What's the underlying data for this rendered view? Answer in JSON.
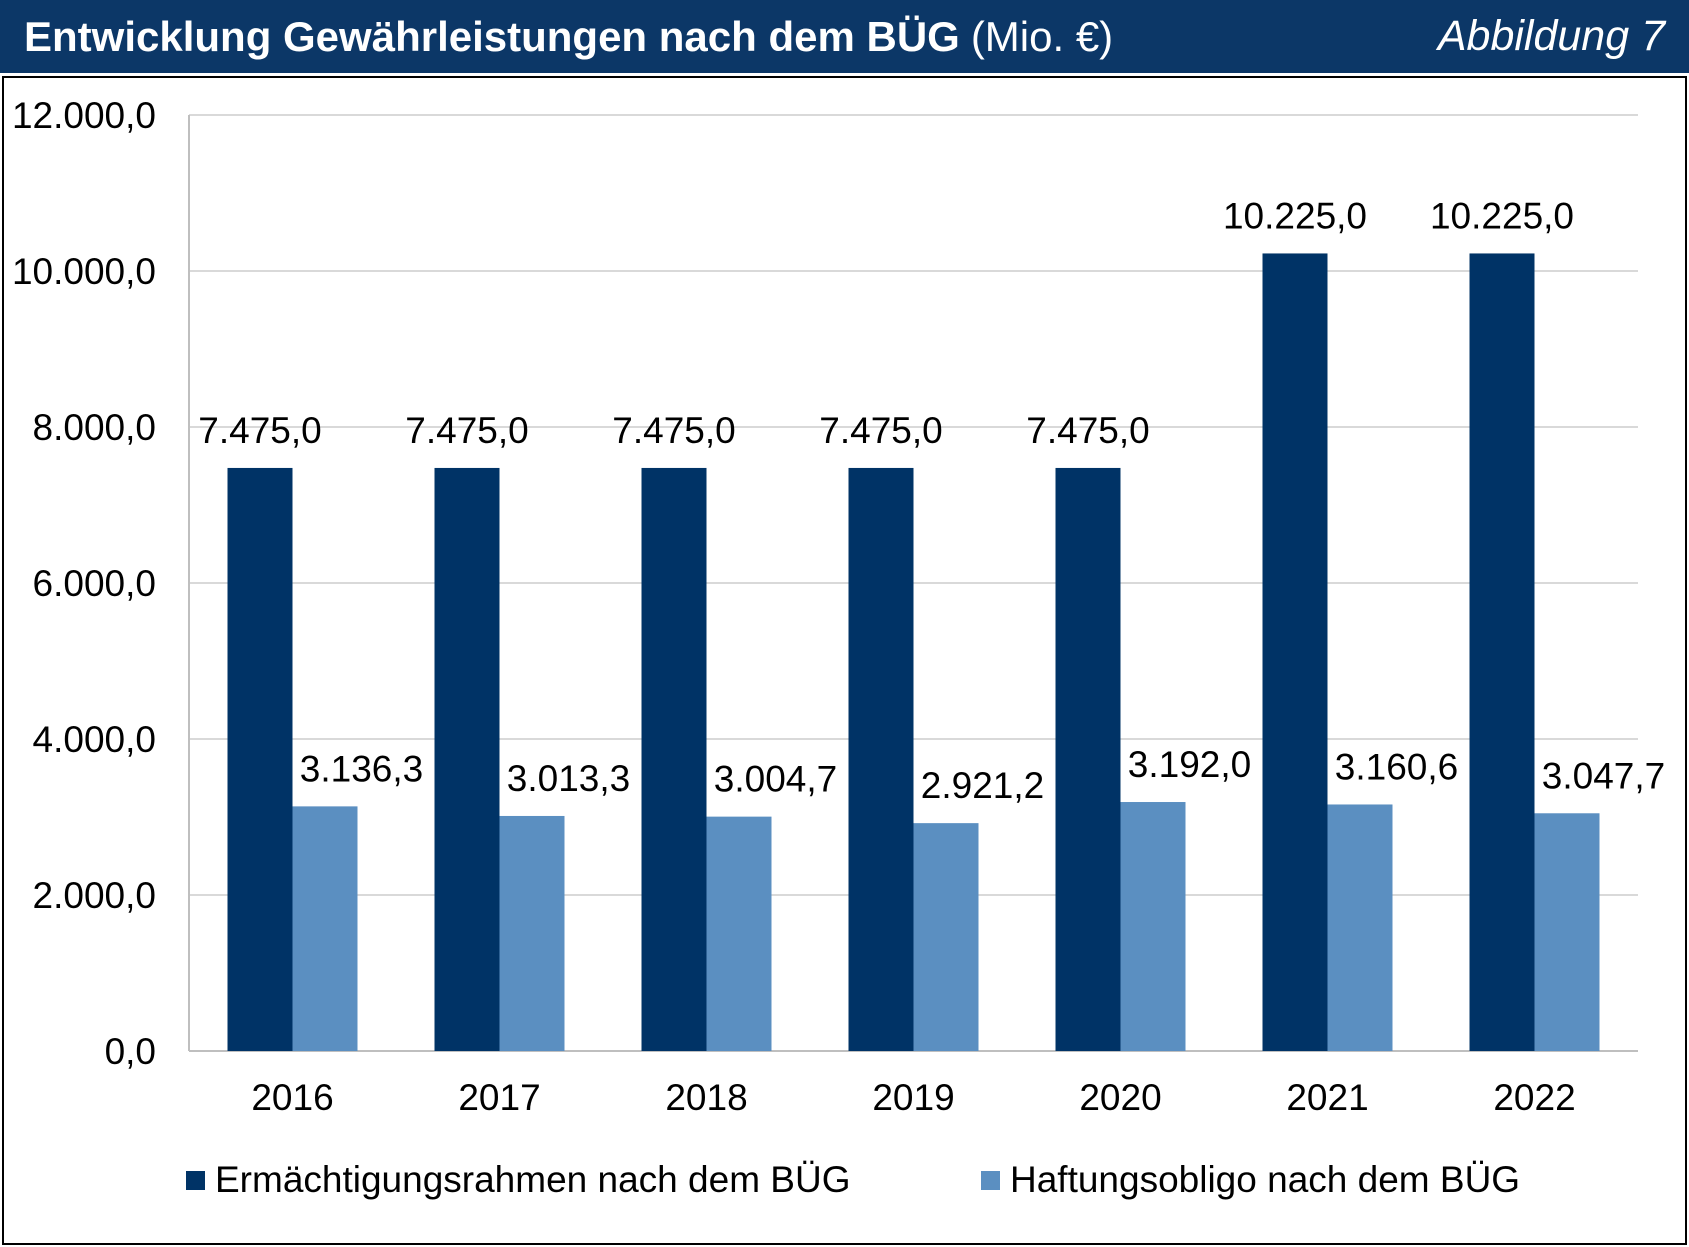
{
  "header": {
    "figure_label": "Abbildung 7"
  },
  "colors": {
    "header_bg": "#0c3767",
    "header_text": "#ffffff",
    "grid": "#d9d9d9",
    "axis": "#bfbfbf"
  },
  "chart_data": {
    "type": "bar",
    "title": "Entwicklung Gewährleistungen nach dem BÜG",
    "unit": "(Mio. €)",
    "categories": [
      "2016",
      "2017",
      "2018",
      "2019",
      "2020",
      "2021",
      "2022"
    ],
    "series": [
      {
        "name": "Ermächtigungsrahmen nach dem BÜG",
        "color": "#003366",
        "values": [
          7475.0,
          7475.0,
          7475.0,
          7475.0,
          7475.0,
          10225.0,
          10225.0
        ],
        "data_labels": [
          "7.475,0",
          "7.475,0",
          "7.475,0",
          "7.475,0",
          "7.475,0",
          "10.225,0",
          "10.225,0"
        ]
      },
      {
        "name": "Haftungsobligo nach dem BÜG",
        "color": "#5b8fc1",
        "values": [
          3136.3,
          3013.3,
          3004.7,
          2921.2,
          3192.0,
          3160.6,
          3047.7
        ],
        "data_labels": [
          "3.136,3",
          "3.013,3",
          "3.004,7",
          "2.921,2",
          "3.192,0",
          "3.160,6",
          "3.047,7"
        ]
      }
    ],
    "ylim": [
      0,
      12000
    ],
    "ytick_values": [
      0,
      2000,
      4000,
      6000,
      8000,
      10000,
      12000
    ],
    "ytick_labels": [
      "0,0",
      "2.000,0",
      "4.000,0",
      "6.000,0",
      "8.000,0",
      "10.000,0",
      "12.000,0"
    ],
    "grid": true,
    "legend_position": "bottom"
  }
}
